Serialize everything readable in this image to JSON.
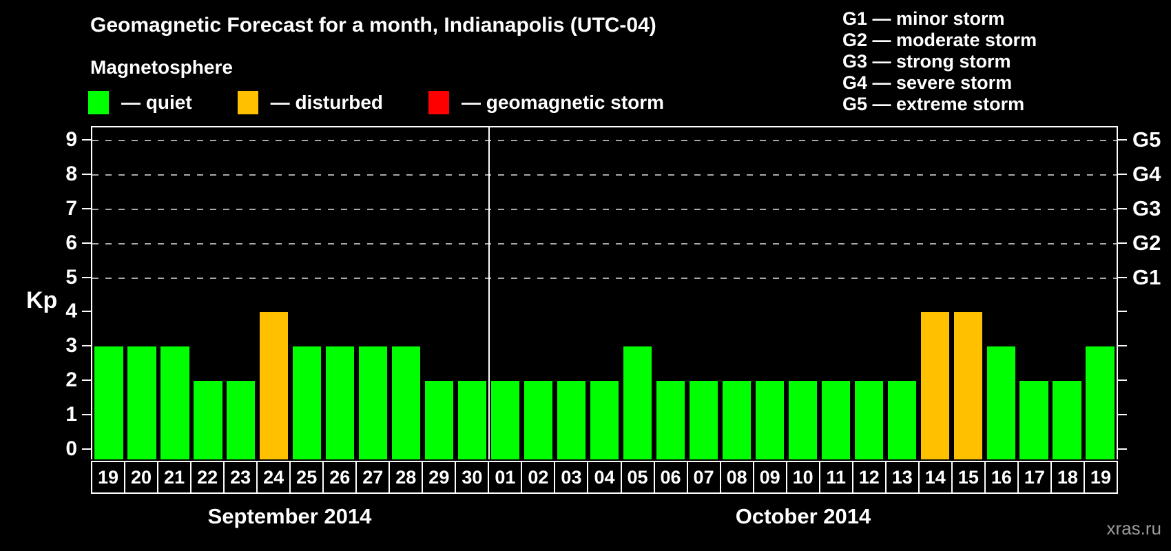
{
  "title": "Geomagnetic Forecast for a month, Indianapolis (UTC-04)",
  "subtitle": "Magnetosphere",
  "legend": {
    "items": [
      {
        "name": "quiet",
        "label": "— quiet",
        "color": "#00ff00"
      },
      {
        "name": "disturbed",
        "label": "— disturbed",
        "color": "#ffc000"
      },
      {
        "name": "storm",
        "label": "— geomagnetic storm",
        "color": "#ff0000"
      }
    ]
  },
  "storm_scale_legend": [
    "G1 — minor storm",
    "G2 — moderate storm",
    "G3 — strong storm",
    "G4 — severe storm",
    "G5 — extreme storm"
  ],
  "y_axis": {
    "label": "Kp",
    "ticks": [
      0,
      1,
      2,
      3,
      4,
      5,
      6,
      7,
      8,
      9
    ]
  },
  "g_levels": [
    {
      "kp": 5,
      "label": "G1"
    },
    {
      "kp": 6,
      "label": "G2"
    },
    {
      "kp": 7,
      "label": "G3"
    },
    {
      "kp": 8,
      "label": "G4"
    },
    {
      "kp": 9,
      "label": "G5"
    }
  ],
  "colors": {
    "quiet": "#00ff00",
    "disturbed": "#ffc000",
    "storm": "#ff0000",
    "grid": "#a9a9a9",
    "axis": "#ffffff",
    "background": "#000000"
  },
  "watermark": "xras.ru",
  "chart_data": {
    "type": "bar",
    "title": "Geomagnetic Forecast for a month, Indianapolis (UTC-04)",
    "xlabel": "",
    "ylabel": "Kp",
    "ylim": [
      0,
      9
    ],
    "grid": "dashed horizontal lines at Kp 5-9 (G1-G5)",
    "categories": [
      "19",
      "20",
      "21",
      "22",
      "23",
      "24",
      "25",
      "26",
      "27",
      "28",
      "29",
      "30",
      "01",
      "02",
      "03",
      "04",
      "05",
      "06",
      "07",
      "08",
      "09",
      "10",
      "11",
      "12",
      "13",
      "14",
      "15",
      "16",
      "17",
      "18",
      "19"
    ],
    "values": [
      3,
      3,
      3,
      2,
      2,
      4,
      3,
      3,
      3,
      3,
      2,
      2,
      2,
      2,
      2,
      2,
      3,
      2,
      2,
      2,
      2,
      2,
      2,
      2,
      2,
      4,
      4,
      3,
      2,
      2,
      3
    ],
    "statuses": [
      "quiet",
      "quiet",
      "quiet",
      "quiet",
      "quiet",
      "disturbed",
      "quiet",
      "quiet",
      "quiet",
      "quiet",
      "quiet",
      "quiet",
      "quiet",
      "quiet",
      "quiet",
      "quiet",
      "quiet",
      "quiet",
      "quiet",
      "quiet",
      "quiet",
      "quiet",
      "quiet",
      "quiet",
      "quiet",
      "disturbed",
      "disturbed",
      "quiet",
      "quiet",
      "quiet",
      "quiet"
    ],
    "months": [
      {
        "label": "September 2014",
        "days": 12
      },
      {
        "label": "October 2014",
        "days": 19
      }
    ]
  }
}
